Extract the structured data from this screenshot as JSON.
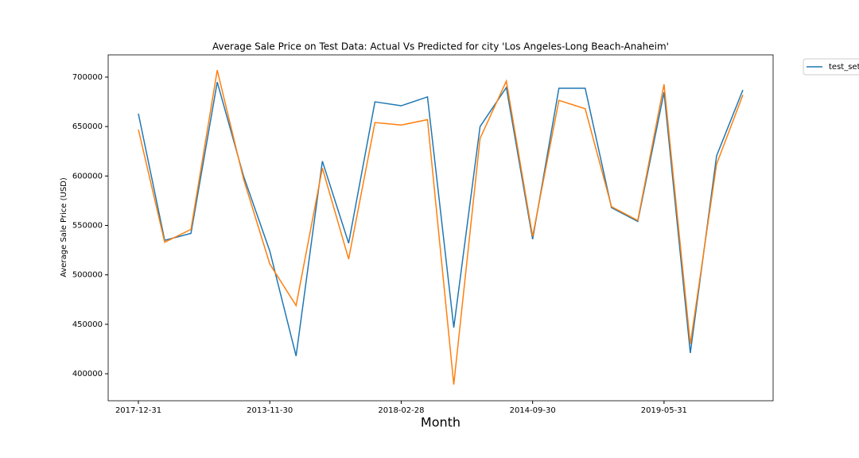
{
  "chart_data": {
    "type": "line",
    "title": "Average Sale Price on Test Data: Actual Vs Predicted for city 'Los Angeles-Long Beach-Anaheim'",
    "xlabel": "Month",
    "ylabel": "Average Sale Price (USD)",
    "categories": [
      "2017-12-31",
      null,
      null,
      null,
      null,
      "2013-11-30",
      null,
      null,
      null,
      null,
      "2018-02-28",
      null,
      null,
      null,
      null,
      "2014-09-30",
      null,
      null,
      null,
      null,
      "2019-05-31",
      null,
      null,
      null
    ],
    "series": [
      {
        "name": "test_set",
        "color": "#1f77b4",
        "values": [
          663000,
          535000,
          542000,
          695000,
          600000,
          524000,
          418000,
          615000,
          532000,
          675000,
          671000,
          680000,
          446700,
          650000,
          689500,
          536000,
          688700,
          688700,
          568000,
          554000,
          684700,
          421000,
          620400,
          687000
        ]
      },
      {
        "color": "#ff7f0e",
        "values": [
          647000,
          533000,
          546000,
          707000,
          597000,
          511000,
          469000,
          608000,
          516000,
          654000,
          651500,
          657000,
          389000,
          638000,
          696000,
          539000,
          676500,
          668000,
          569000,
          555000,
          692700,
          430000,
          612000,
          682000
        ]
      }
    ],
    "ylim": [
      372700,
      722500
    ],
    "yticks": [
      400000,
      450000,
      500000,
      550000,
      600000,
      650000,
      700000
    ],
    "legend": "outside upper right"
  }
}
